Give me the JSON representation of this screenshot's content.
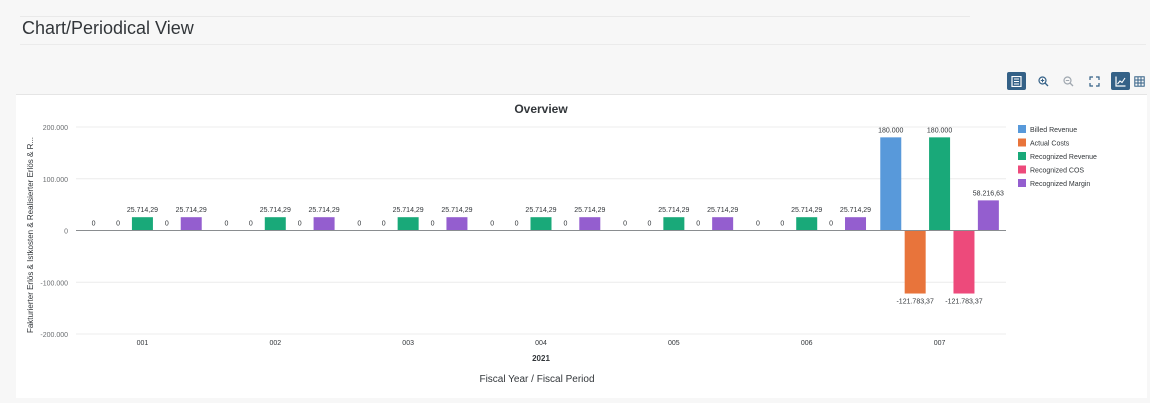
{
  "page": {
    "title": "Chart/Periodical View"
  },
  "toolbar": {
    "buttons": [
      {
        "name": "legend-toggle-icon",
        "active": true
      },
      {
        "name": "zoom-in-icon",
        "active": false
      },
      {
        "name": "zoom-out-icon",
        "active": false
      },
      {
        "name": "fullscreen-icon",
        "active": false
      },
      {
        "name": "chart-view-icon",
        "active": true
      },
      {
        "name": "table-view-icon",
        "active": false
      }
    ]
  },
  "chart_data": {
    "type": "bar",
    "title": "Overview",
    "xlabel": "Fiscal Year / Fiscal Period",
    "ylabel": "Fakturierter Erlös & Istkosten & Realisierter Erlös & R...",
    "x_group_label": "2021",
    "categories": [
      "001",
      "002",
      "003",
      "004",
      "005",
      "006",
      "007"
    ],
    "ylim": [
      -200000,
      200000
    ],
    "yticks": [
      200000,
      100000,
      0,
      -100000,
      -200000
    ],
    "ytick_labels": [
      "200.000",
      "100.000",
      "0",
      "-100.000",
      "-200.000"
    ],
    "grid": true,
    "legend_position": "right",
    "series": [
      {
        "name": "Billed Revenue",
        "color": "#5899da",
        "values": [
          0,
          0,
          0,
          0,
          0,
          0,
          180000
        ],
        "labels": [
          "0",
          "0",
          "0",
          "0",
          "0",
          "0",
          "180.000"
        ]
      },
      {
        "name": "Actual Costs",
        "color": "#e8743b",
        "values": [
          0,
          0,
          0,
          0,
          0,
          0,
          -121783.37
        ],
        "labels": [
          "0",
          "0",
          "0",
          "0",
          "0",
          "0",
          "-121.783,37"
        ]
      },
      {
        "name": "Recognized Revenue",
        "color": "#19a979",
        "values": [
          25714.29,
          25714.29,
          25714.29,
          25714.29,
          25714.29,
          25714.29,
          180000
        ],
        "labels": [
          "25.714,29",
          "25.714,29",
          "25.714,29",
          "25.714,29",
          "25.714,29",
          "25.714,29",
          "180.000"
        ]
      },
      {
        "name": "Recognized COS",
        "color": "#ed4a7b",
        "values": [
          0,
          0,
          0,
          0,
          0,
          0,
          -121783.37
        ],
        "labels": [
          "0",
          "0",
          "0",
          "0",
          "0",
          "0",
          "-121.783,37"
        ]
      },
      {
        "name": "Recognized Margin",
        "color": "#945ecf",
        "values": [
          25714.29,
          25714.29,
          25714.29,
          25714.29,
          25714.29,
          25714.29,
          58216.63
        ],
        "labels": [
          "25.714,29",
          "25.714,29",
          "25.714,29",
          "25.714,29",
          "25.714,29",
          "25.714,29",
          "58.216,63"
        ]
      }
    ]
  }
}
